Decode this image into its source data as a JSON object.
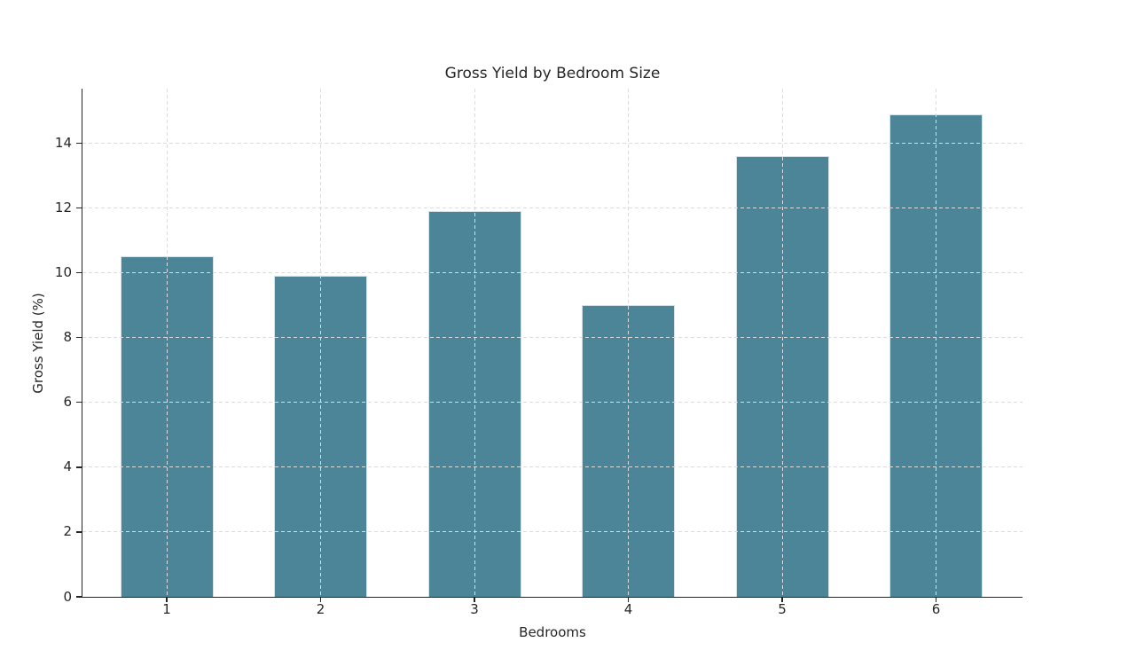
{
  "chart_data": {
    "type": "bar",
    "title": "Gross Yield by Bedroom Size",
    "xlabel": "Bedrooms",
    "ylabel": "Gross Yield (%)",
    "categories": [
      "1",
      "2",
      "3",
      "4",
      "5",
      "6"
    ],
    "values": [
      10.5,
      9.9,
      11.9,
      9.0,
      13.6,
      14.9
    ],
    "yticks": [
      0,
      2,
      4,
      6,
      8,
      10,
      12,
      14
    ],
    "ylim": [
      0,
      15.68
    ],
    "grid": true,
    "legend": false,
    "colors": {
      "bar_fill": "#4D8598",
      "bar_edge": "#D4E1E6",
      "grid_line": "#DBDBDB",
      "spine": "#262626",
      "text": "#262626",
      "background": "#FFFFFF"
    }
  }
}
